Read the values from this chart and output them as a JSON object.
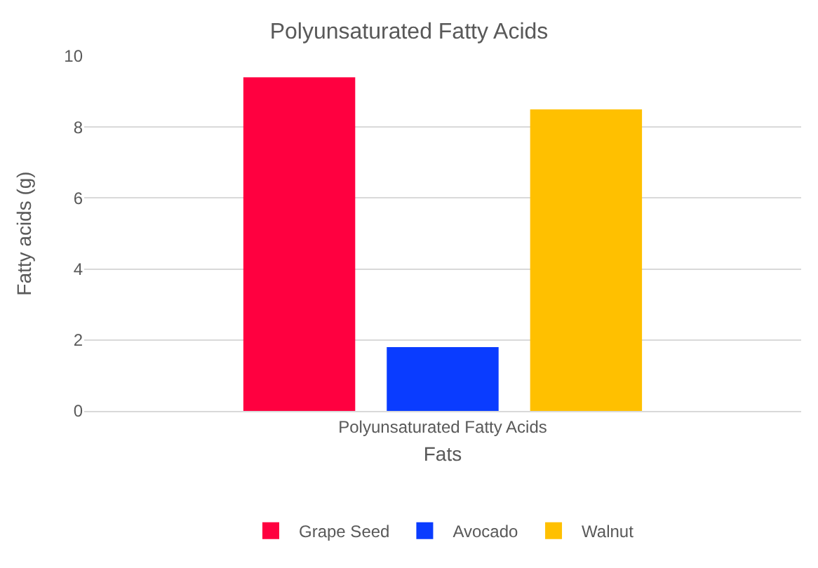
{
  "chart_data": {
    "type": "bar",
    "title": "Polyunsaturated Fatty Acids",
    "xlabel": "Fats",
    "ylabel": "Fatty acids (g)",
    "categories": [
      "Polyunsaturated Fatty Acids"
    ],
    "series": [
      {
        "name": "Grape Seed",
        "color": "#ff0040",
        "values": [
          9.4
        ]
      },
      {
        "name": "Avocado",
        "color": "#0a3cff",
        "values": [
          1.8
        ]
      },
      {
        "name": "Walnut",
        "color": "#ffc000",
        "values": [
          8.5
        ]
      }
    ],
    "ylim": [
      0,
      10
    ],
    "yticks": [
      0,
      2,
      4,
      6,
      8,
      10
    ],
    "grid": "y",
    "legend": "bottom"
  }
}
